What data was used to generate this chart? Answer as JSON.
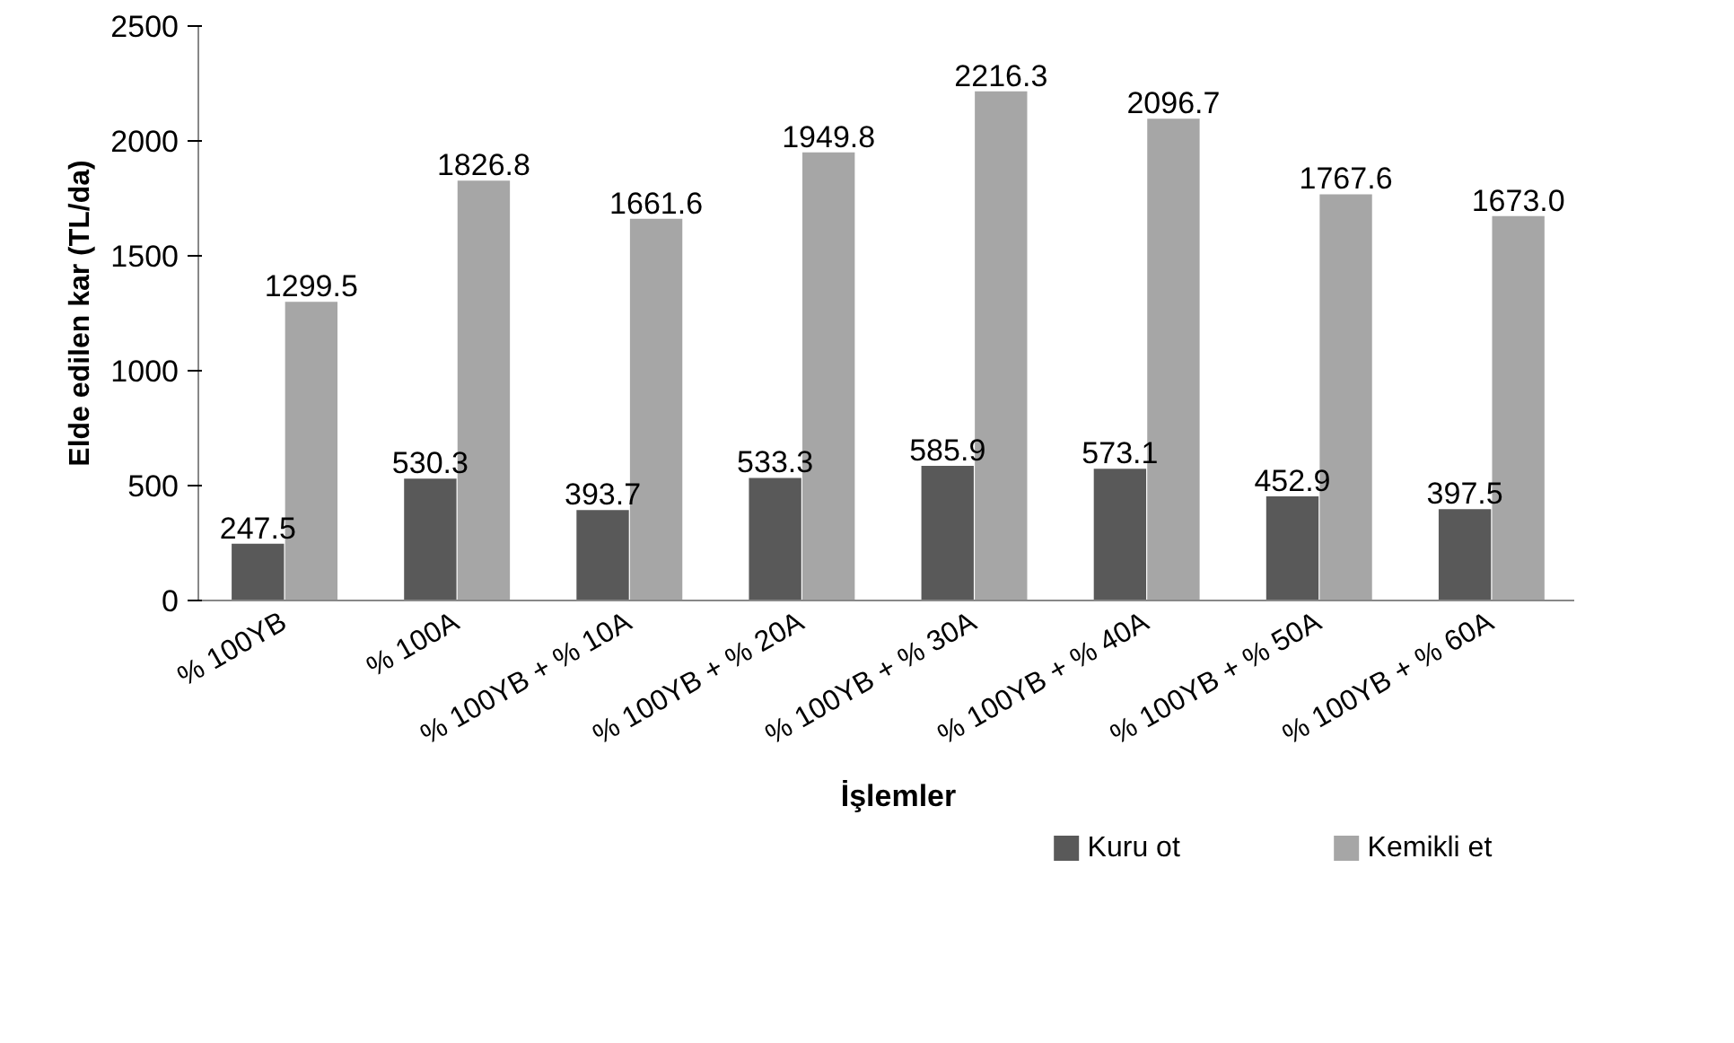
{
  "chart_data": {
    "type": "bar",
    "ylabel": "Elde edilen kar (TL/da)",
    "xlabel": "İşlemler",
    "categories": [
      "% 100YB",
      "% 100A",
      "% 100YB + % 10A",
      "% 100YB + % 20A",
      "% 100YB + % 30A",
      "% 100YB + % 40A",
      "% 100YB + % 50A",
      "% 100YB + % 60A"
    ],
    "series": [
      {
        "name": "Kuru ot",
        "color": "#595959",
        "values": [
          247.5,
          530.3,
          393.7,
          533.3,
          585.9,
          573.1,
          452.9,
          397.5
        ],
        "value_labels": [
          "247.5",
          "530.3",
          "393.7",
          "533.3",
          "585.9",
          "573.1",
          "452.9",
          "397.5"
        ]
      },
      {
        "name": "Kemikli et",
        "color": "#a6a6a6",
        "values": [
          1299.5,
          1826.8,
          1661.6,
          1949.8,
          2216.3,
          2096.7,
          1767.6,
          1673
        ],
        "value_labels": [
          "1299.5",
          "1826.8",
          "1661.6",
          "1949.8",
          "2216.3",
          "2096.7",
          "1767.6",
          "1673.0"
        ]
      }
    ],
    "ylim": [
      0,
      2500
    ],
    "yticks": [
      0,
      500,
      1000,
      1500,
      2000,
      2500
    ],
    "legend": "bottom right"
  }
}
